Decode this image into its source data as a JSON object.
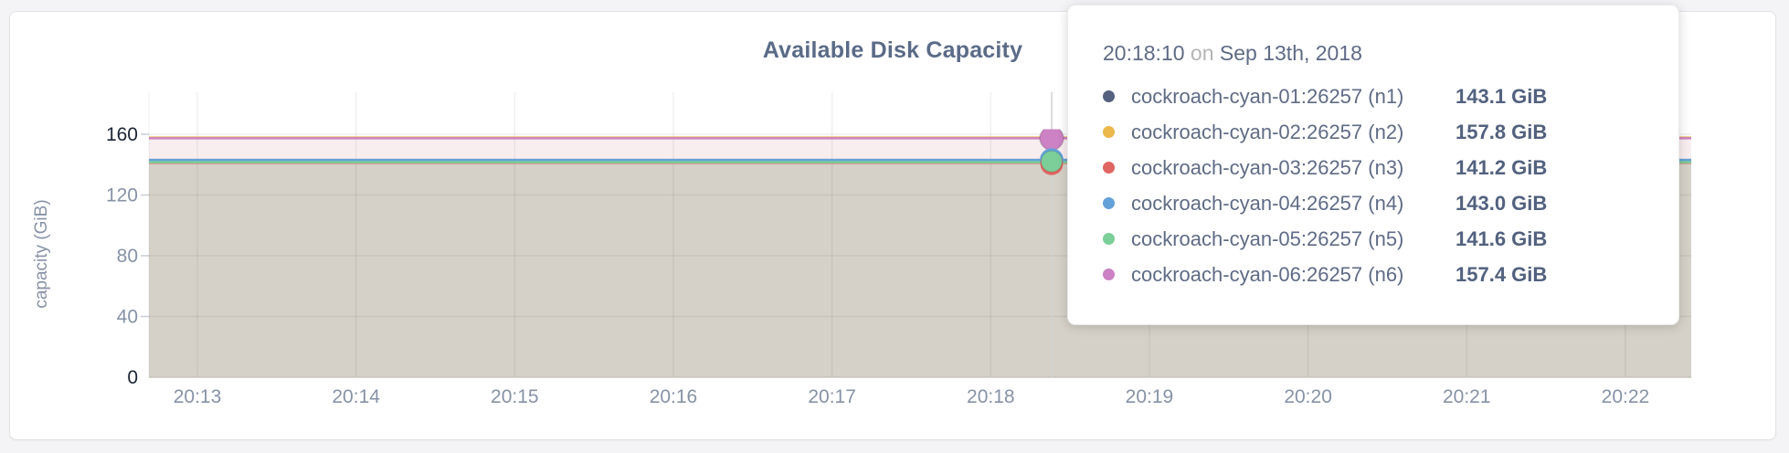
{
  "chart_data": {
    "type": "area",
    "title": "Available Disk Capacity",
    "ylabel": "capacity (GiB)",
    "x_ticks": [
      "20:13",
      "20:14",
      "20:15",
      "20:16",
      "20:17",
      "20:18",
      "20:19",
      "20:20",
      "20:21",
      "20:22"
    ],
    "y_ticks": [
      0,
      40,
      80,
      120,
      160
    ],
    "ylim": [
      0,
      170
    ],
    "grid": true,
    "legend_position": "none (values shown in hover tooltip)",
    "series": [
      {
        "name": "cockroach-cyan-01:26257 (n1)",
        "value_gib": 143.1,
        "color": "#566180"
      },
      {
        "name": "cockroach-cyan-02:26257 (n2)",
        "value_gib": 157.8,
        "color": "#eab84b"
      },
      {
        "name": "cockroach-cyan-03:26257 (n3)",
        "value_gib": 141.2,
        "color": "#e06561"
      },
      {
        "name": "cockroach-cyan-04:26257 (n4)",
        "value_gib": 143.0,
        "color": "#64a1d9"
      },
      {
        "name": "cockroach-cyan-05:26257 (n5)",
        "value_gib": 141.6,
        "color": "#7ccf99"
      },
      {
        "name": "cockroach-cyan-06:26257 (n6)",
        "value_gib": 157.4,
        "color": "#cc82c4"
      }
    ],
    "hover_time": "20:18:10"
  },
  "tooltip": {
    "time": "20:18:10",
    "conjunction": "on",
    "date": "Sep 13th, 2018",
    "rows": [
      {
        "label": "cockroach-cyan-01:26257 (n1)",
        "value": "143.1 GiB",
        "color": "#566180"
      },
      {
        "label": "cockroach-cyan-02:26257 (n2)",
        "value": "157.8 GiB",
        "color": "#eab84b"
      },
      {
        "label": "cockroach-cyan-03:26257 (n3)",
        "value": "141.2 GiB",
        "color": "#e06561"
      },
      {
        "label": "cockroach-cyan-04:26257 (n4)",
        "value": "143.0 GiB",
        "color": "#64a1d9"
      },
      {
        "label": "cockroach-cyan-05:26257 (n5)",
        "value": "141.6 GiB",
        "color": "#7ccf99"
      },
      {
        "label": "cockroach-cyan-06:26257 (n6)",
        "value": "157.4 GiB",
        "color": "#cc82c4"
      }
    ]
  },
  "colors": {
    "fill_low": "#d5d1c8",
    "fill_high": "#f8eef0",
    "axis_text": "#8792a6",
    "axis_text_dark": "#1b2433",
    "grid_line": "rgba(0,0,0,0.06)",
    "hover_line": "#d2d2d2",
    "baseline": "#c6c3bc"
  }
}
